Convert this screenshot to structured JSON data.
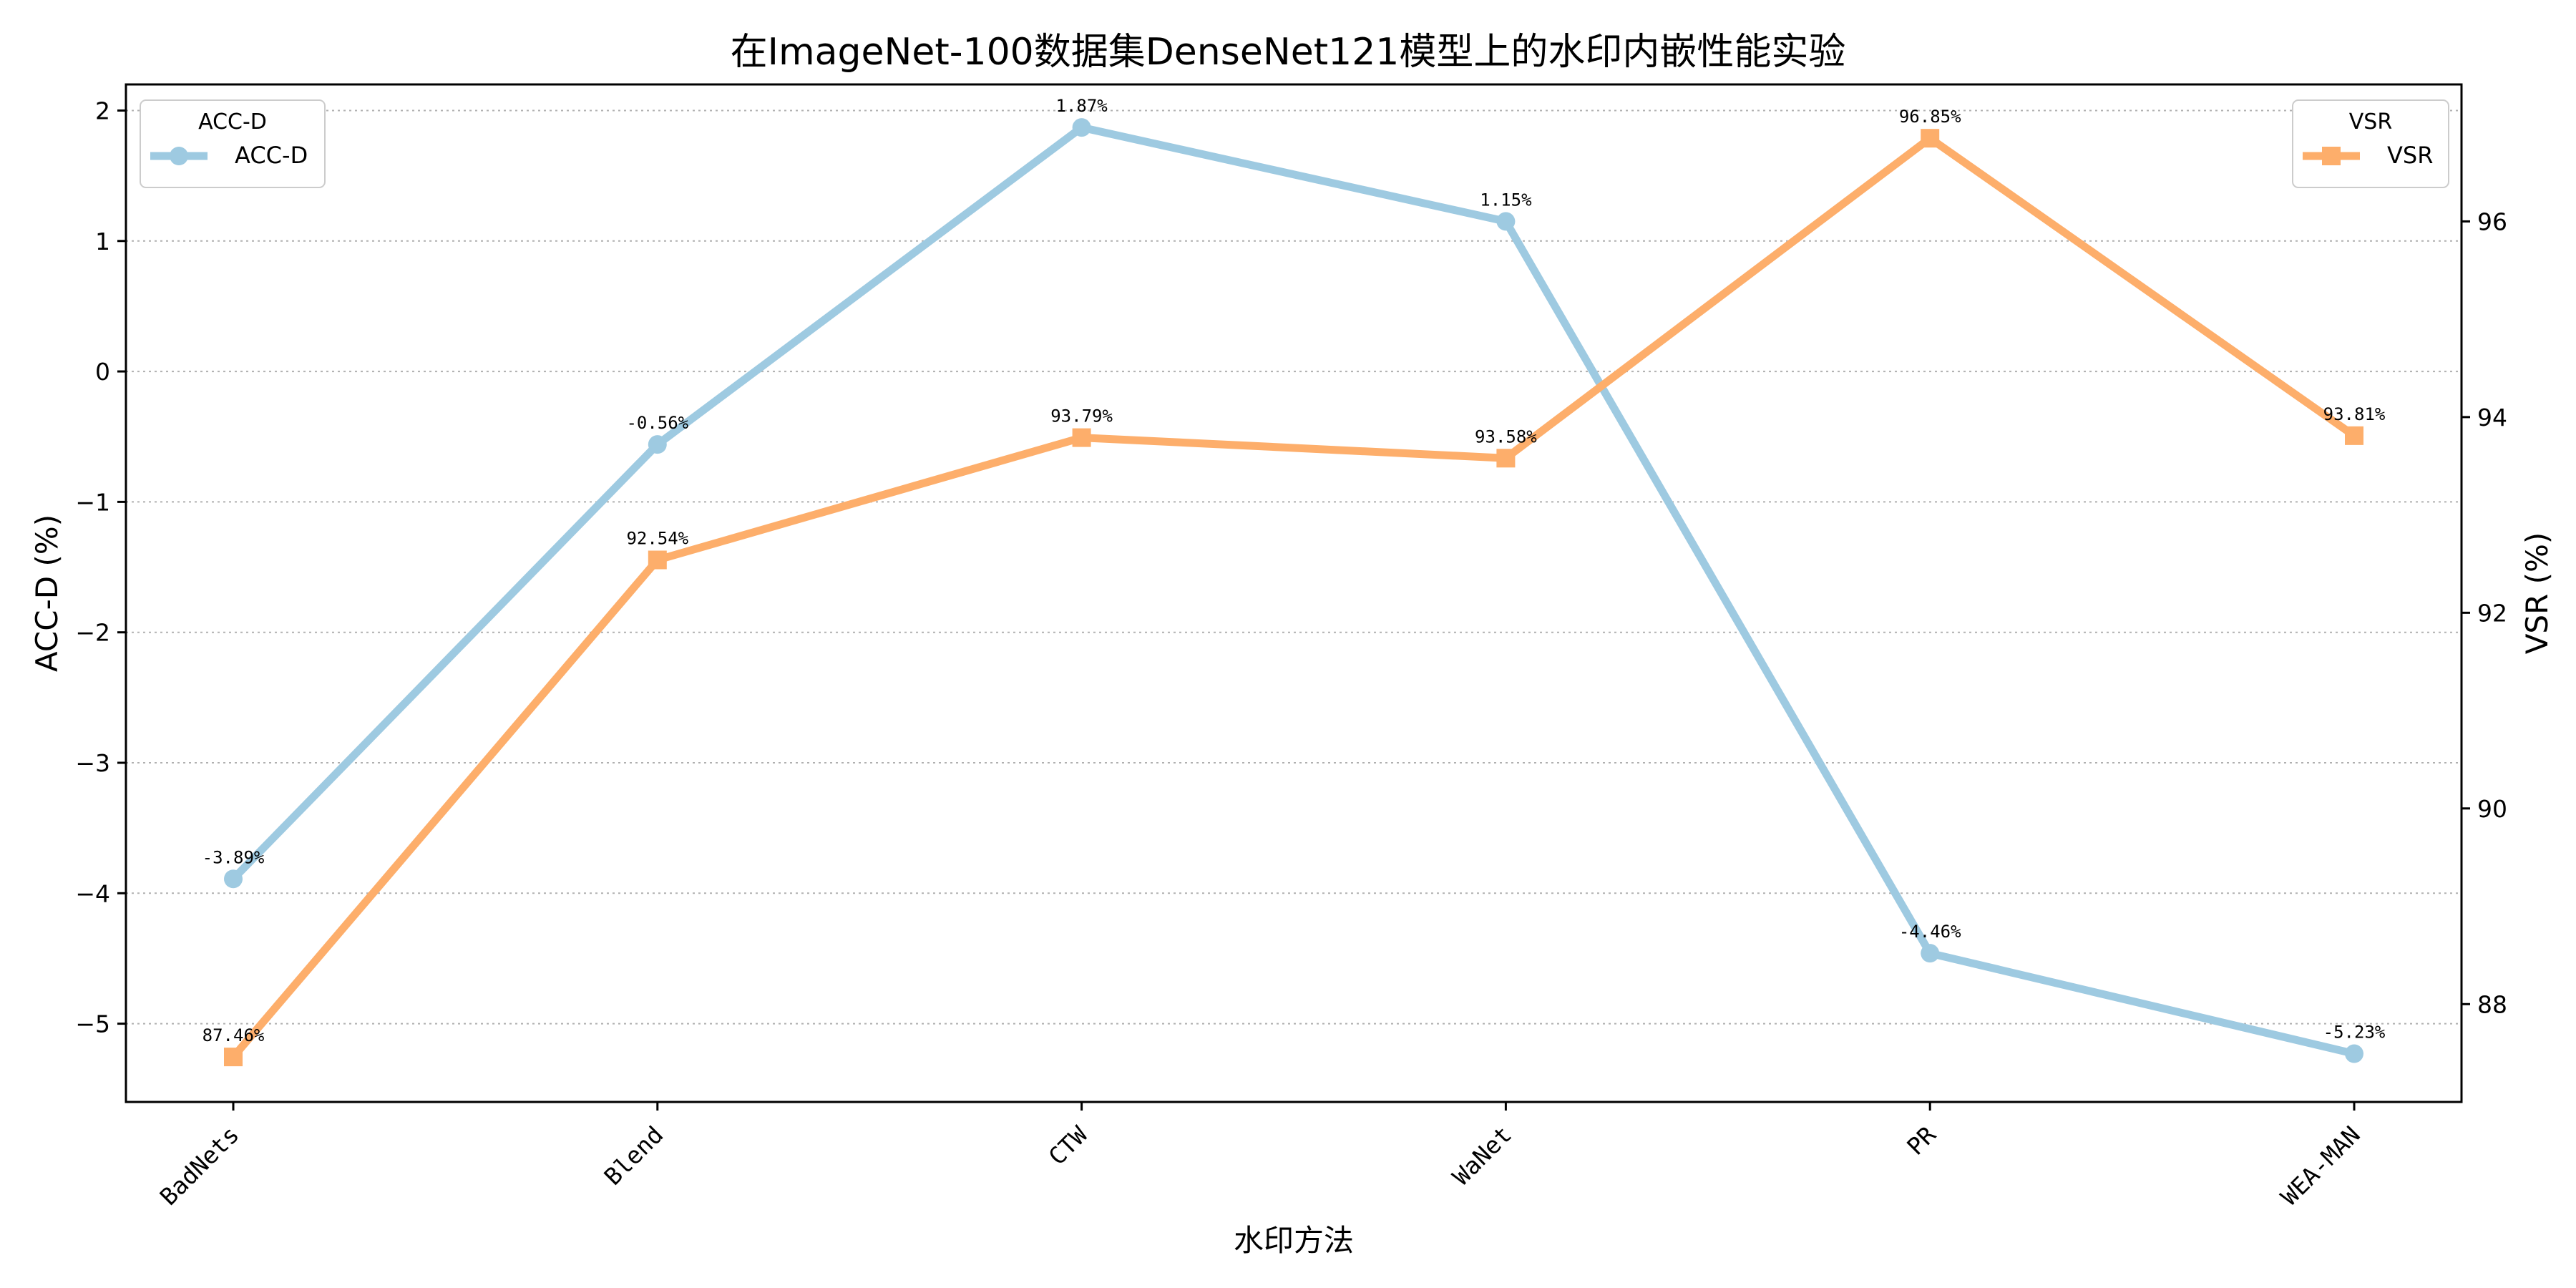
{
  "chart_data": {
    "type": "line",
    "title": "在ImageNet-100数据集DenseNet121模型上的水印内嵌性能实验",
    "xlabel": "水印方法",
    "ylabel_left": "ACC-D (%)",
    "ylabel_right": "VSR (%)",
    "categories": [
      "BadNets",
      "Blend",
      "CTW",
      "WaNet",
      "PR",
      "WEA-MAN"
    ],
    "ylim_left": [
      -5.6,
      2.2
    ],
    "ylim_right": [
      87.0,
      97.4
    ],
    "yticks_left": [
      -5,
      -4,
      -3,
      -2,
      -1,
      0,
      1,
      2
    ],
    "yticks_right": [
      88,
      90,
      92,
      94,
      96
    ],
    "grid": "horizontal-dotted",
    "series": [
      {
        "name": "ACC-D",
        "axis": "left",
        "color": "#9ecae1",
        "marker": "circle",
        "values": [
          -3.89,
          -0.56,
          1.87,
          1.15,
          -4.46,
          -5.23
        ],
        "labels": [
          "-3.89%",
          "-0.56%",
          "1.87%",
          "1.15%",
          "-4.46%",
          "-5.23%"
        ]
      },
      {
        "name": "VSR",
        "axis": "right",
        "color": "#fdae6b",
        "marker": "square",
        "values": [
          87.46,
          92.54,
          93.79,
          93.58,
          96.85,
          93.81
        ],
        "labels": [
          "87.46%",
          "92.54%",
          "93.79%",
          "93.58%",
          "96.85%",
          "93.81%"
        ]
      }
    ],
    "legends": [
      {
        "title": "ACC-D",
        "entry": "ACC-D",
        "placement": "top-left"
      },
      {
        "title": "VSR",
        "entry": "VSR",
        "placement": "top-right"
      }
    ]
  }
}
